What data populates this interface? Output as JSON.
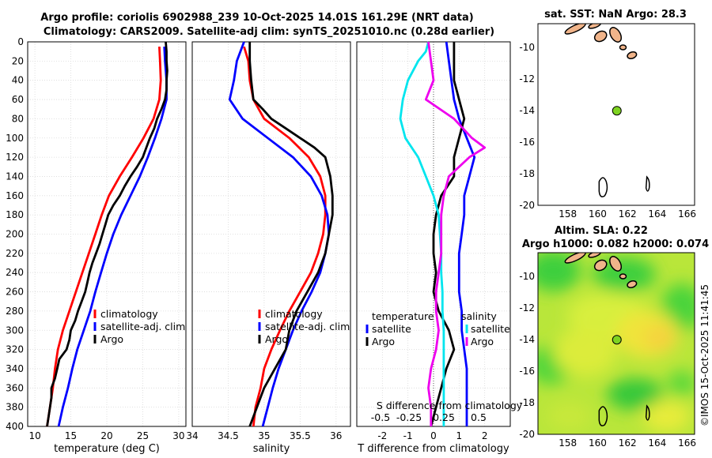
{
  "title_line1": "Argo profile: coriolis 6902988_239 10-Oct-2025 14.01S 161.29E (NRT data)",
  "title_line2": "Climatology: CARS2009. Satellite-adj clim: synTS_20251010.nc (0.28d earlier)",
  "watermark": "©IMOS 15-Oct-2025 11:41:45",
  "colors": {
    "climatology": "#ff0000",
    "satellite": "#0000ff",
    "argo": "#000000",
    "t_diff": "#00e5ee",
    "s_diff": "#ee00ee"
  },
  "chart_data": [
    {
      "type": "line",
      "name": "temperature",
      "xlabel": "temperature (deg C)",
      "ylabel": "",
      "xlim": [
        9,
        31
      ],
      "ylim": [
        0,
        400
      ],
      "y_inverted": true,
      "xticks": [
        10,
        15,
        20,
        25,
        30
      ],
      "yticks": [
        0,
        20,
        40,
        60,
        80,
        100,
        120,
        140,
        160,
        180,
        200,
        220,
        240,
        260,
        280,
        300,
        320,
        340,
        360,
        380,
        400
      ],
      "legend": [
        "climatology",
        "satellite-adj. clim",
        "Argo"
      ],
      "series": [
        {
          "name": "climatology",
          "color": "#ff0000",
          "depth": [
            5,
            20,
            40,
            60,
            80,
            100,
            120,
            140,
            160,
            180,
            200,
            220,
            240,
            260,
            280,
            300,
            320,
            340,
            360,
            380,
            400
          ],
          "values": [
            27.3,
            27.4,
            27.5,
            27.3,
            26.5,
            25.1,
            23.5,
            21.8,
            20.3,
            19.3,
            18.4,
            17.5,
            16.6,
            15.7,
            14.8,
            13.9,
            13.2,
            12.8,
            12.5,
            12.1,
            11.7
          ]
        },
        {
          "name": "satellite-adj. clim",
          "color": "#0000ff",
          "depth": [
            5,
            20,
            40,
            60,
            80,
            100,
            120,
            140,
            160,
            180,
            200,
            220,
            240,
            260,
            280,
            300,
            320,
            340,
            360,
            380,
            400
          ],
          "values": [
            28.0,
            28.1,
            28.3,
            28.3,
            27.6,
            26.7,
            25.7,
            24.6,
            23.3,
            22.0,
            20.9,
            20.0,
            19.2,
            18.4,
            17.7,
            16.8,
            15.9,
            15.2,
            14.6,
            13.9,
            13.3
          ]
        },
        {
          "name": "Argo",
          "color": "#000000",
          "depth": [
            0,
            10,
            20,
            30,
            40,
            50,
            60,
            70,
            80,
            90,
            100,
            110,
            120,
            130,
            140,
            150,
            160,
            170,
            180,
            190,
            200,
            210,
            220,
            230,
            240,
            250,
            260,
            270,
            280,
            290,
            300,
            310,
            320,
            330,
            340,
            350,
            360,
            370,
            380,
            390,
            400
          ],
          "values": [
            28.2,
            28.3,
            28.3,
            28.4,
            28.3,
            28.3,
            28.1,
            27.6,
            27.0,
            26.6,
            26.0,
            25.5,
            25.0,
            24.2,
            23.3,
            22.5,
            21.8,
            20.9,
            20.2,
            19.8,
            19.4,
            19.0,
            18.5,
            18.0,
            17.6,
            17.3,
            17.0,
            16.5,
            16.0,
            15.6,
            15.0,
            14.8,
            14.4,
            13.4,
            13.1,
            12.8,
            12.3,
            12.3,
            12.1,
            11.9,
            11.7
          ]
        }
      ]
    },
    {
      "type": "line",
      "name": "salinity",
      "xlabel": "salinity",
      "xlim": [
        34,
        36.2
      ],
      "ylim": [
        0,
        400
      ],
      "y_inverted": true,
      "xticks": [
        34,
        34.5,
        35,
        35.5,
        36
      ],
      "legend": [
        "climatology",
        "satellite-adj. clim",
        "Argo"
      ],
      "series": [
        {
          "name": "climatology",
          "color": "#ff0000",
          "depth": [
            5,
            20,
            40,
            60,
            80,
            100,
            120,
            140,
            160,
            180,
            200,
            220,
            240,
            260,
            280,
            300,
            320,
            340,
            360,
            380,
            400
          ],
          "values": [
            34.72,
            34.78,
            34.8,
            34.85,
            35.0,
            35.35,
            35.62,
            35.78,
            35.85,
            35.85,
            35.82,
            35.75,
            35.65,
            35.5,
            35.35,
            35.22,
            35.1,
            35.0,
            34.95,
            34.88,
            34.85
          ]
        },
        {
          "name": "satellite-adj. clim",
          "color": "#0000ff",
          "depth": [
            0,
            20,
            40,
            60,
            80,
            100,
            120,
            140,
            160,
            180,
            200,
            220,
            240,
            260,
            280,
            300,
            320,
            340,
            360,
            380,
            400
          ],
          "values": [
            34.72,
            34.62,
            34.58,
            34.52,
            34.7,
            35.05,
            35.4,
            35.65,
            35.8,
            35.88,
            35.9,
            35.85,
            35.78,
            35.66,
            35.52,
            35.4,
            35.3,
            35.2,
            35.12,
            35.05,
            34.98
          ]
        },
        {
          "name": "Argo",
          "color": "#000000",
          "depth": [
            0,
            20,
            40,
            60,
            70,
            80,
            90,
            100,
            110,
            120,
            140,
            160,
            180,
            200,
            220,
            240,
            260,
            280,
            300,
            320,
            340,
            360,
            380,
            400
          ],
          "values": [
            34.8,
            34.8,
            34.82,
            34.85,
            34.98,
            35.1,
            35.3,
            35.5,
            35.7,
            35.85,
            35.92,
            35.95,
            35.95,
            35.9,
            35.85,
            35.75,
            35.6,
            35.45,
            35.35,
            35.3,
            35.15,
            35.0,
            34.9,
            34.8
          ]
        }
      ]
    },
    {
      "type": "line",
      "name": "differences",
      "xlabel": "T difference from climatology",
      "xlabel2": "S difference from climatology",
      "xlim": [
        -3,
        3
      ],
      "ylim": [
        0,
        400
      ],
      "y_inverted": true,
      "xticks": [
        -2,
        -1,
        0,
        1,
        2
      ],
      "xticks2_labels": [
        "-0.5",
        "-0.25",
        "0.25",
        "0.5"
      ],
      "legend_left_title": "temperature",
      "legend_right_title": "salinity",
      "legend": [
        "satellite",
        "Argo"
      ],
      "series": [
        {
          "name": "temperature satellite",
          "color": "#0000ff",
          "depth": [
            0,
            20,
            40,
            60,
            80,
            100,
            120,
            140,
            160,
            180,
            200,
            220,
            240,
            260,
            280,
            300,
            320,
            340,
            360,
            380,
            400
          ],
          "values": [
            0.5,
            0.6,
            0.7,
            0.8,
            1.0,
            1.3,
            1.6,
            1.4,
            1.2,
            1.2,
            1.1,
            1.0,
            1.0,
            1.0,
            1.1,
            1.1,
            1.2,
            1.3,
            1.3,
            1.3,
            1.3
          ]
        },
        {
          "name": "temperature Argo",
          "color": "#000000",
          "depth": [
            0,
            40,
            60,
            80,
            100,
            120,
            140,
            160,
            180,
            200,
            220,
            240,
            260,
            280,
            300,
            320,
            340,
            360,
            380,
            400
          ],
          "values": [
            0.8,
            0.8,
            1.0,
            1.2,
            1.0,
            0.8,
            0.8,
            0.3,
            0.1,
            0.0,
            0.0,
            0.1,
            0.0,
            0.2,
            0.6,
            0.8,
            0.5,
            0.3,
            0.1,
            -0.1
          ]
        },
        {
          "name": "salinity satellite",
          "color": "#00e5ee",
          "depth": [
            0,
            10,
            20,
            40,
            60,
            80,
            100,
            120,
            140,
            160,
            180,
            200,
            220,
            240,
            260,
            280,
            300,
            320,
            340,
            360,
            380,
            400
          ],
          "values": [
            -0.2,
            -0.3,
            -0.6,
            -1.0,
            -1.2,
            -1.3,
            -1.1,
            -0.6,
            -0.3,
            0.0,
            0.2,
            0.25,
            0.3,
            0.3,
            0.35,
            0.35,
            0.4,
            0.4,
            0.4,
            0.4,
            0.4,
            0.4
          ]
        },
        {
          "name": "salinity Argo",
          "color": "#ee00ee",
          "depth": [
            0,
            40,
            60,
            80,
            100,
            110,
            120,
            140,
            160,
            180,
            200,
            220,
            240,
            260,
            280,
            300,
            320,
            340,
            360,
            380,
            400
          ],
          "values": [
            -0.2,
            0.0,
            -0.3,
            0.8,
            1.5,
            2.0,
            1.4,
            0.6,
            0.4,
            0.3,
            0.3,
            0.3,
            0.2,
            0.1,
            0.1,
            0.2,
            0.1,
            -0.1,
            -0.2,
            -0.1,
            -0.1
          ]
        }
      ]
    },
    {
      "type": "map",
      "name": "sst_map",
      "title": "sat. SST: NaN Argo: 28.3",
      "xlim": [
        156,
        166.5
      ],
      "ylim": [
        -20,
        -8.5
      ],
      "xticks": [
        158,
        160,
        162,
        164,
        166
      ],
      "yticks": [
        -10,
        -12,
        -14,
        -16,
        -18,
        -20
      ],
      "argo_point": {
        "lon": 161.29,
        "lat": -14.01
      }
    },
    {
      "type": "heatmap",
      "name": "sla_map",
      "title": "Altim. SLA: 0.22",
      "subtitle": "Argo h1000: 0.082 h2000: 0.074",
      "xlim": [
        156,
        166.5
      ],
      "ylim": [
        -20,
        -8.5
      ],
      "xticks": [
        158,
        160,
        162,
        164,
        166
      ],
      "yticks": [
        -10,
        -12,
        -14,
        -16,
        -18,
        -20
      ],
      "argo_point": {
        "lon": 161.29,
        "lat": -14.01
      }
    }
  ]
}
